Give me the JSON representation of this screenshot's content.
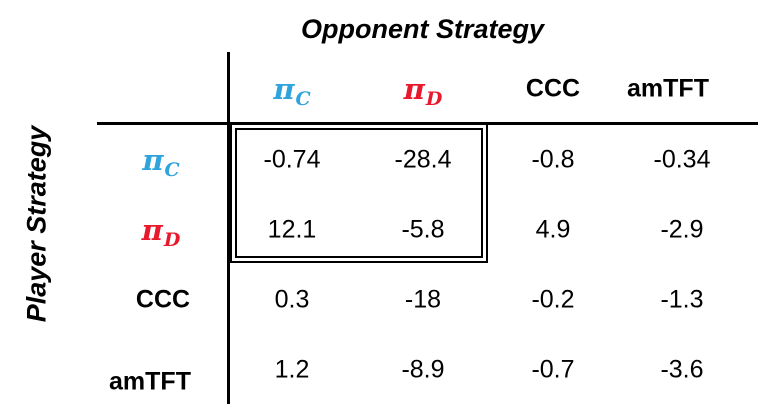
{
  "title_opponent": "Opponent Strategy",
  "title_player": "Player Strategy",
  "colors": {
    "cooperate": "#2ea3dc",
    "defect": "#e8192c",
    "text": "#000000"
  },
  "pi_symbol": "π",
  "columns": [
    {
      "label": "π",
      "sub": "C"
    },
    {
      "label": "π",
      "sub": "D"
    },
    {
      "label": "CCC",
      "sub": ""
    },
    {
      "label": "amTFT",
      "sub": ""
    }
  ],
  "rows": [
    {
      "label": "π",
      "sub": "C",
      "values": [
        "-0.74",
        "-28.4",
        "-0.8",
        "-0.34"
      ]
    },
    {
      "label": "π",
      "sub": "D",
      "values": [
        "12.1",
        "-5.8",
        "4.9",
        "-2.9"
      ]
    },
    {
      "label": "CCC",
      "sub": "",
      "values": [
        "0.3",
        "-18",
        "-0.2",
        "-1.3"
      ]
    },
    {
      "label": "amTFT",
      "sub": "",
      "values": [
        "1.2",
        "-8.9",
        "-0.7",
        "-3.6"
      ]
    }
  ]
}
